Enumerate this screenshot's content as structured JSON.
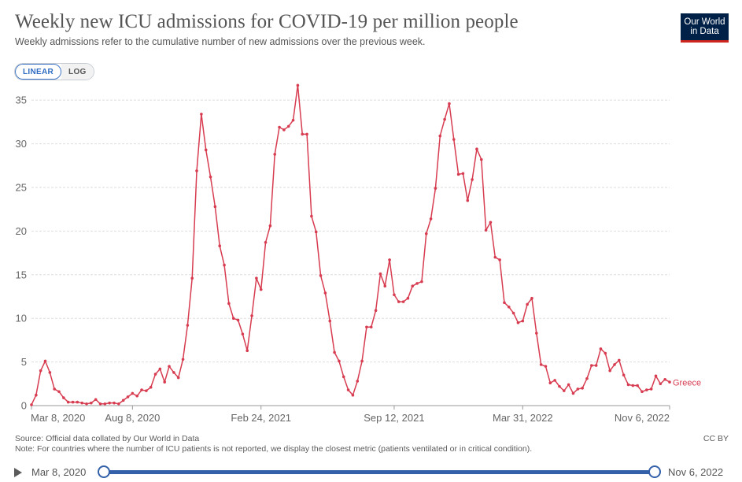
{
  "header": {
    "title": "Weekly new ICU admissions for COVID-19 per million people",
    "subtitle": "Weekly admissions refer to the cumulative number of new admissions over the previous week.",
    "logo_line1": "Our World",
    "logo_line2": "in Data"
  },
  "controls": {
    "linear_label": "LINEAR",
    "log_label": "LOG"
  },
  "colors": {
    "series": "#d73c50",
    "grid": "#dddddd",
    "axis": "#666666",
    "accent": "#3360a9"
  },
  "chart_data": {
    "type": "line",
    "title": "Weekly new ICU admissions for COVID-19 per million people",
    "xlabel": "",
    "ylabel": "",
    "ylim": [
      0,
      37
    ],
    "yticks": [
      0,
      5,
      10,
      15,
      20,
      25,
      30,
      35
    ],
    "xticks": [
      {
        "index": 0,
        "label": "Mar 8, 2020"
      },
      {
        "index": 22,
        "label": "Aug 8, 2020"
      },
      {
        "index": 50,
        "label": "Feb 24, 2021"
      },
      {
        "index": 79,
        "label": "Sep 12, 2021"
      },
      {
        "index": 107,
        "label": "Mar 31, 2022"
      },
      {
        "index": 139,
        "label": "Nov 6, 2022"
      }
    ],
    "series": [
      {
        "name": "Greece",
        "values": [
          0.1,
          1.2,
          4.0,
          5.1,
          3.8,
          1.9,
          1.6,
          0.9,
          0.4,
          0.4,
          0.4,
          0.3,
          0.2,
          0.3,
          0.7,
          0.2,
          0.2,
          0.3,
          0.3,
          0.2,
          0.6,
          1.0,
          1.4,
          1.1,
          1.8,
          1.7,
          2.1,
          3.6,
          4.2,
          2.7,
          4.5,
          3.8,
          3.2,
          5.3,
          9.2,
          14.6,
          26.9,
          33.4,
          29.3,
          26.2,
          22.8,
          18.3,
          16.1,
          11.7,
          10.0,
          9.8,
          8.2,
          6.3,
          10.3,
          14.6,
          13.3,
          18.7,
          20.6,
          28.8,
          31.9,
          31.6,
          32.0,
          32.7,
          36.7,
          31.1,
          31.1,
          21.7,
          19.9,
          14.9,
          12.9,
          9.7,
          6.1,
          5.1,
          3.3,
          1.8,
          1.2,
          2.8,
          5.1,
          9.0,
          9.0,
          10.9,
          15.1,
          13.7,
          16.7,
          12.7,
          11.9,
          11.9,
          12.3,
          13.7,
          14.0,
          14.2,
          19.7,
          21.4,
          24.9,
          30.9,
          32.8,
          34.6,
          30.5,
          26.5,
          26.6,
          23.5,
          25.9,
          29.4,
          28.2,
          20.1,
          21.0,
          17.0,
          16.7,
          11.8,
          11.3,
          10.6,
          9.5,
          9.7,
          11.6,
          12.3,
          8.3,
          4.7,
          4.5,
          2.6,
          2.9,
          2.2,
          1.7,
          2.4,
          1.4,
          1.9,
          2.0,
          3.1,
          4.6,
          4.6,
          6.5,
          6.0,
          4.0,
          4.7,
          5.2,
          3.5,
          2.4,
          2.3,
          2.3,
          1.6,
          1.8,
          1.9,
          3.4,
          2.5,
          3.0,
          2.7
        ]
      }
    ]
  }
}
